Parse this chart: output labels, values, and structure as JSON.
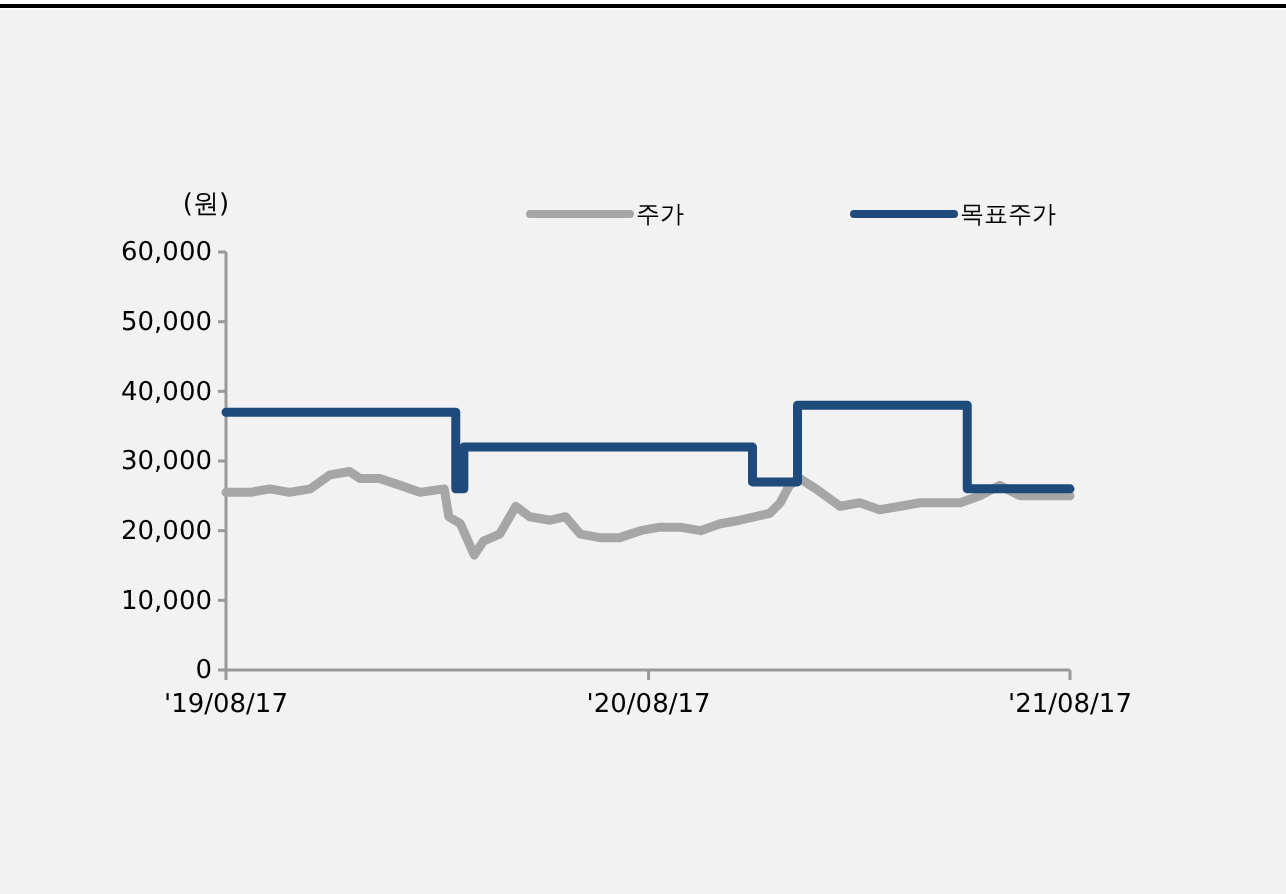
{
  "chart_data": {
    "type": "line",
    "ylabel": "(원)",
    "legend": "top",
    "marker": "none",
    "line_style": "solid",
    "grid": false,
    "ylim": [
      0,
      60000
    ],
    "yticks": [
      0,
      {
        "value": 10000,
        "label": "10,000"
      },
      {
        "value": 20000,
        "label": "20,000"
      },
      {
        "value": 30000,
        "label": "30,000"
      },
      {
        "value": 40000,
        "label": "40,000"
      },
      {
        "value": 50000,
        "label": "50,000"
      },
      {
        "value": 60000,
        "label": "60,000"
      }
    ],
    "xlim": [
      "2019-08-17",
      "2021-08-17"
    ],
    "xticks": [
      {
        "value": "2019-08-17",
        "label": "'19/08/17"
      },
      {
        "value": "2020-08-17",
        "label": "'20/08/17"
      },
      {
        "value": "2021-08-17",
        "label": "'21/08/17"
      }
    ],
    "series": [
      {
        "name": "주가",
        "color": "#a6a6a6",
        "x": [
          "2019-08-17",
          "2019-09-07",
          "2019-09-24",
          "2019-10-11",
          "2019-10-29",
          "2019-11-15",
          "2019-12-02",
          "2019-12-11",
          "2019-12-28",
          "2020-01-15",
          "2020-02-01",
          "2020-02-22",
          "2020-02-26",
          "2020-03-07",
          "2020-03-19",
          "2020-03-27",
          "2020-04-10",
          "2020-04-24",
          "2020-05-06",
          "2020-05-24",
          "2020-06-06",
          "2020-06-19",
          "2020-07-06",
          "2020-07-23",
          "2020-08-10",
          "2020-08-27",
          "2020-09-13",
          "2020-10-01",
          "2020-10-18",
          "2020-11-04",
          "2020-11-30",
          "2020-12-09",
          "2020-12-17",
          "2020-12-26",
          "2021-01-09",
          "2021-01-30",
          "2021-02-16",
          "2021-03-05",
          "2021-03-23",
          "2021-04-09",
          "2021-04-26",
          "2021-05-14",
          "2021-05-31",
          "2021-06-17",
          "2021-07-05",
          "2021-07-22",
          "2021-08-17"
        ],
        "values": [
          25500,
          25500,
          26000,
          25500,
          26000,
          28000,
          28500,
          27500,
          27500,
          26500,
          25500,
          26000,
          22000,
          21000,
          16500,
          18500,
          19500,
          23500,
          22000,
          21500,
          22000,
          19500,
          19000,
          19000,
          20000,
          20500,
          20500,
          20000,
          21000,
          21500,
          22500,
          24000,
          26500,
          27500,
          26000,
          23500,
          24000,
          23000,
          23500,
          24000,
          24000,
          24000,
          25000,
          26500,
          25000,
          25000,
          25000
        ]
      },
      {
        "name": "목표주가",
        "color": "#1f4a7c",
        "type": "step",
        "x": [
          "2019-08-17",
          "2020-03-03",
          "2020-03-10",
          "2020-11-15",
          "2020-12-24",
          "2021-05-20",
          "2021-08-17"
        ],
        "values": [
          37000,
          26000,
          32000,
          27000,
          38000,
          26000,
          26000
        ]
      }
    ]
  }
}
